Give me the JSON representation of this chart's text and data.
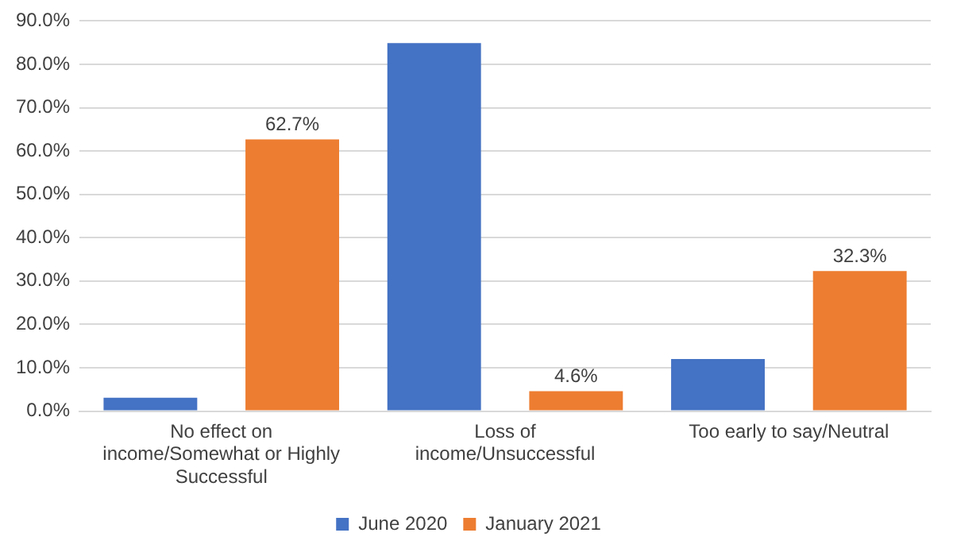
{
  "chart_data": {
    "type": "bar",
    "categories": [
      "No effect on income/Somewhat or Highly Successful",
      "Loss of income/Unsuccessful",
      "Too early to say/Neutral"
    ],
    "series": [
      {
        "name": "June 2020",
        "color": "#4472c4",
        "values": [
          3.1,
          84.9,
          12.0
        ]
      },
      {
        "name": "January 2021",
        "color": "#ed7d31",
        "values": [
          62.7,
          4.6,
          32.3
        ],
        "value_labels": [
          "62.7%",
          "4.6%",
          "32.3%"
        ]
      }
    ],
    "ylim": [
      0,
      90
    ],
    "yticks": [
      {
        "value": 0,
        "label": "0.0%"
      },
      {
        "value": 10,
        "label": "10.0%"
      },
      {
        "value": 20,
        "label": "20.0%"
      },
      {
        "value": 30,
        "label": "30.0%"
      },
      {
        "value": 40,
        "label": "40.0%"
      },
      {
        "value": 50,
        "label": "50.0%"
      },
      {
        "value": 60,
        "label": "60.0%"
      },
      {
        "value": 70,
        "label": "70.0%"
      },
      {
        "value": 80,
        "label": "80.0%"
      },
      {
        "value": 90,
        "label": "90.0%"
      }
    ],
    "grid": "y",
    "legend": "bottom"
  }
}
